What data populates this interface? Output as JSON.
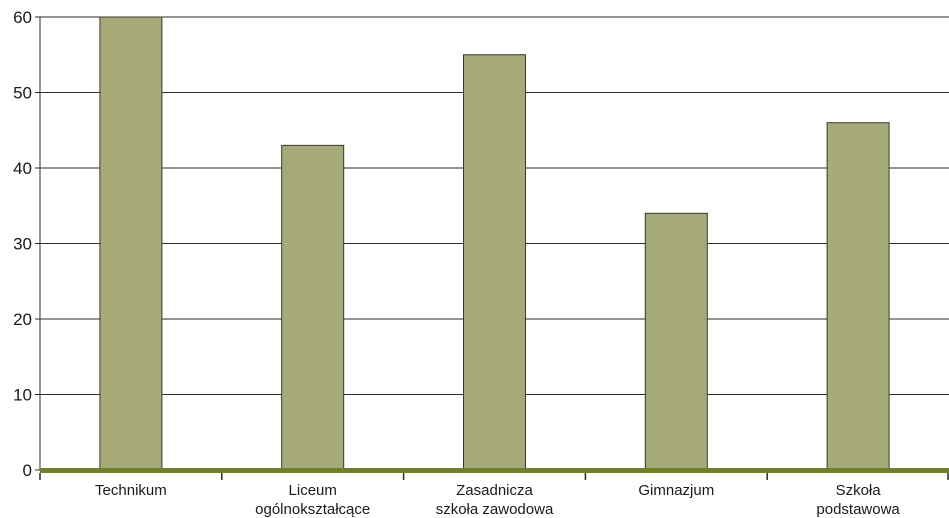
{
  "chart_data": {
    "type": "bar",
    "categories": [
      [
        "Technikum"
      ],
      [
        "Liceum",
        "ogólnokształcące"
      ],
      [
        "Zasadnicza",
        "szkoła zawodowa"
      ],
      [
        "Gimnazjum"
      ],
      [
        "Szkoła",
        "podstawowa"
      ]
    ],
    "values": [
      60,
      43,
      55,
      34,
      46
    ],
    "yticks": [
      0,
      10,
      20,
      30,
      40,
      50,
      60
    ],
    "ylim": [
      0,
      60
    ],
    "title": "",
    "xlabel": "",
    "ylabel": "",
    "grid": true,
    "colors": {
      "bar_fill": "#a5aa78",
      "bar_stroke": "#3a3a2a",
      "baseline": "#6f7f2a",
      "grid": "#2b2b2b",
      "text": "#1a1a1a"
    }
  }
}
